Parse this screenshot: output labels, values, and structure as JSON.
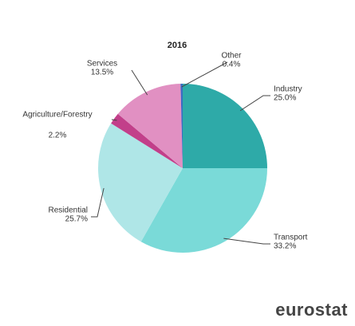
{
  "chart_data": {
    "type": "pie",
    "title": "2016",
    "categories": [
      "Industry",
      "Transport",
      "Residential",
      "Agriculture/Forestry",
      "Services",
      "Other"
    ],
    "values": [
      25.0,
      33.2,
      25.7,
      2.2,
      13.5,
      0.4
    ],
    "value_labels": [
      "25.0%",
      "33.2%",
      "25.7%",
      "2.2%",
      "13.5%",
      "0.4%"
    ],
    "colors": [
      "#2eaaa8",
      "#7adad8",
      "#afe6e7",
      "#c23f8a",
      "#e190c2",
      "#3b6cc2"
    ]
  },
  "logo": "eurostat"
}
